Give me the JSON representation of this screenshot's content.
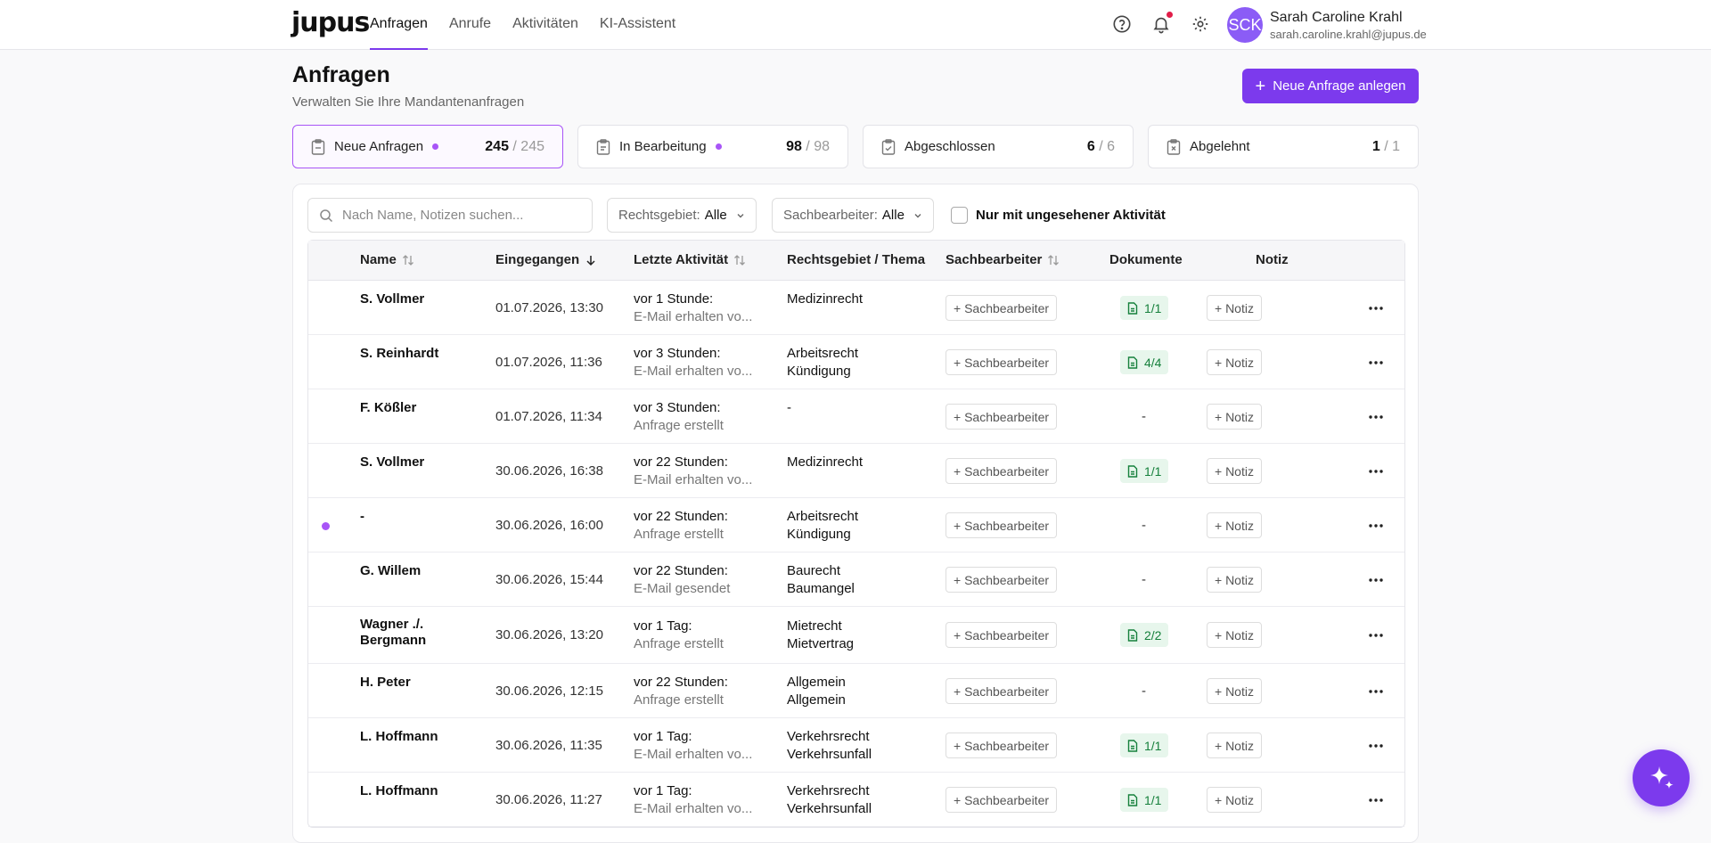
{
  "app": {
    "logo": "jupus"
  },
  "nav": [
    {
      "label": "Anfragen",
      "active": true
    },
    {
      "label": "Anrufe"
    },
    {
      "label": "Aktivitäten"
    },
    {
      "label": "KI-Assistent"
    }
  ],
  "user": {
    "initials": "SCK",
    "name": "Sarah Caroline Krahl",
    "email": "sarah.caroline.krahl@jupus.de"
  },
  "header": {
    "title": "Anfragen",
    "subtitle": "Verwalten Sie Ihre Mandantenanfragen",
    "new_button": "Neue Anfrage anlegen"
  },
  "cards": [
    {
      "label": "Neue Anfragen",
      "dot": true,
      "count": "245",
      "total": " / 245",
      "active": true
    },
    {
      "label": "In Bearbeitung",
      "dot": true,
      "count": "98",
      "total": " / 98"
    },
    {
      "label": "Abgeschlossen",
      "count": "6",
      "total": " / 6"
    },
    {
      "label": "Abgelehnt",
      "count": "1",
      "total": " / 1"
    }
  ],
  "filters": {
    "search_placeholder": "Nach Name, Notizen suchen...",
    "rechtsgebiet_label": "Rechtsgebiet:",
    "rechtsgebiet_value": "Alle",
    "sachbearbeiter_label": "Sachbearbeiter:",
    "sachbearbeiter_value": "Alle",
    "unseen_label": "Nur mit ungesehener Aktivität"
  },
  "columns": {
    "name": "Name",
    "received": "Eingegangen",
    "last_activity": "Letzte Aktivität",
    "topic": "Rechtsgebiet / Thema",
    "agent": "Sachbearbeiter",
    "documents": "Dokumente",
    "note": "Notiz"
  },
  "row_actions": {
    "agent_button": "+ Sachbearbeiter",
    "note_button": "+ Notiz"
  },
  "rows": [
    {
      "name": "S. Vollmer",
      "date": "01.07.2026, 13:30",
      "act1": "vor 1 Stunde:",
      "act2": "E-Mail erhalten vo...",
      "topic1": "Medizinrecht",
      "topic2": "",
      "docs": "1/1",
      "unseen": false
    },
    {
      "name": "S. Reinhardt",
      "date": "01.07.2026, 11:36",
      "act1": "vor 3 Stunden:",
      "act2": "E-Mail erhalten vo...",
      "topic1": "Arbeitsrecht",
      "topic2": "Kündigung",
      "docs": "4/4",
      "unseen": false
    },
    {
      "name": "F. Kößler",
      "date": "01.07.2026, 11:34",
      "act1": "vor 3 Stunden:",
      "act2": "Anfrage erstellt",
      "topic1": "-",
      "topic2": "",
      "docs": "-",
      "unseen": false
    },
    {
      "name": "S. Vollmer",
      "date": "30.06.2026, 16:38",
      "act1": "vor 22 Stunden:",
      "act2": "E-Mail erhalten vo...",
      "topic1": "Medizinrecht",
      "topic2": "",
      "docs": "1/1",
      "unseen": false
    },
    {
      "name": "-",
      "date": "30.06.2026, 16:00",
      "act1": "vor 22 Stunden:",
      "act2": "Anfrage erstellt",
      "topic1": "Arbeitsrecht",
      "topic2": "Kündigung",
      "docs": "-",
      "unseen": true
    },
    {
      "name": "G. Willem",
      "date": "30.06.2026, 15:44",
      "act1": "vor 22 Stunden:",
      "act2": "E-Mail gesendet",
      "topic1": "Baurecht",
      "topic2": "Baumangel",
      "docs": "-",
      "unseen": false
    },
    {
      "name": "Wagner ./. Bergmann",
      "date": "30.06.2026, 13:20",
      "act1": "vor 1 Tag:",
      "act2": "Anfrage erstellt",
      "topic1": "Mietrecht",
      "topic2": "Mietvertrag",
      "docs": "2/2",
      "unseen": false,
      "tall": true
    },
    {
      "name": "H. Peter",
      "date": "30.06.2026, 12:15",
      "act1": "vor 22 Stunden:",
      "act2": "Anfrage erstellt",
      "topic1": "Allgemein",
      "topic2": "Allgemein",
      "docs": "-",
      "unseen": false
    },
    {
      "name": "L. Hoffmann",
      "date": "30.06.2026, 11:35",
      "act1": "vor 1 Tag:",
      "act2": "E-Mail erhalten vo...",
      "topic1": "Verkehrsrecht",
      "topic2": "Verkehrsunfall",
      "docs": "1/1",
      "unseen": false
    },
    {
      "name": "L. Hoffmann",
      "date": "30.06.2026, 11:27",
      "act1": "vor 1 Tag:",
      "act2": "E-Mail erhalten vo...",
      "topic1": "Verkehrsrecht",
      "topic2": "Verkehrsunfall",
      "docs": "1/1",
      "unseen": false
    }
  ]
}
